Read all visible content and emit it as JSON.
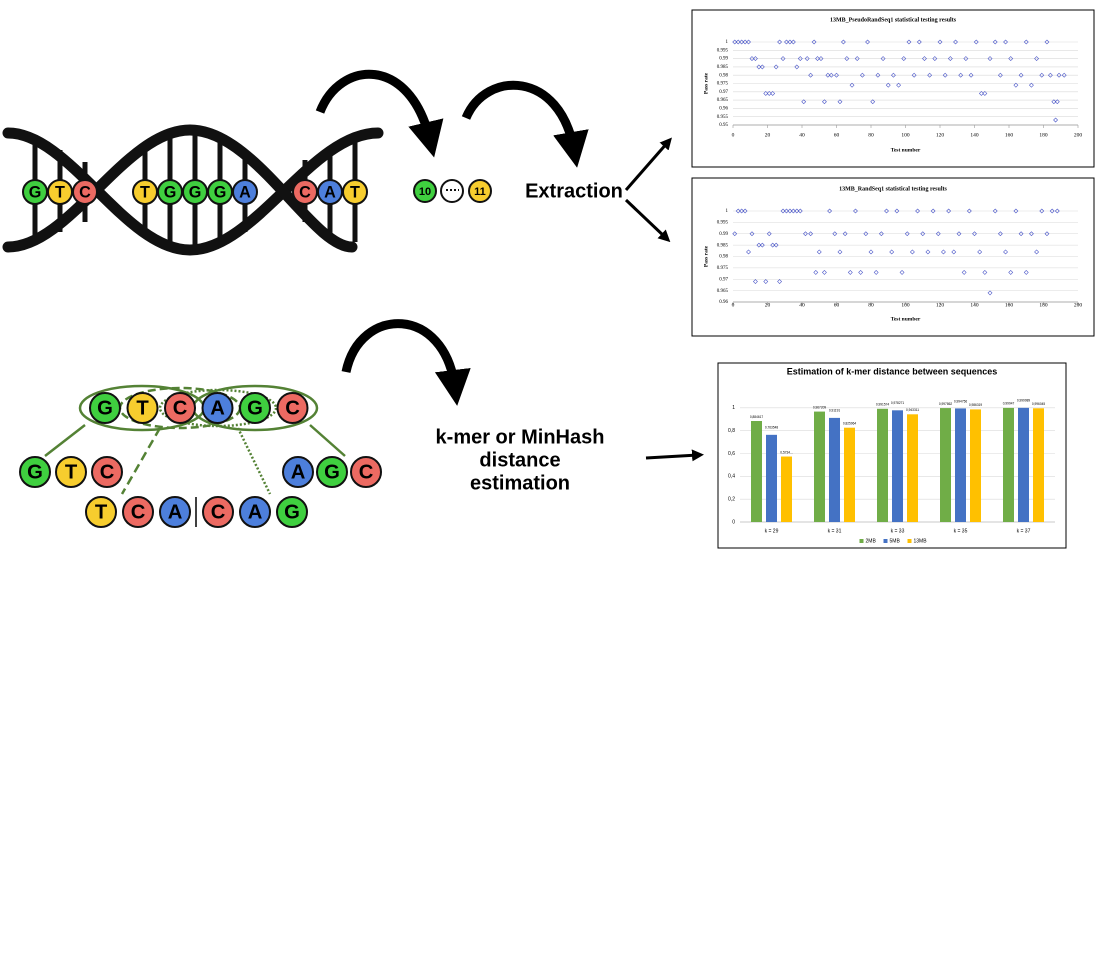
{
  "dna": {
    "bases": [
      "G",
      "T",
      "C",
      "T",
      "G",
      "G",
      "G",
      "A",
      "C",
      "A",
      "T"
    ]
  },
  "counts": [
    "10",
    "11"
  ],
  "labels": {
    "extraction": "Extraction",
    "distance": [
      "k-mer or MinHash",
      "distance",
      "estimation"
    ]
  },
  "kmer": {
    "sequence": [
      "G",
      "T",
      "C",
      "A",
      "G",
      "C"
    ],
    "left": [
      "G",
      "T",
      "C"
    ],
    "right": [
      "A",
      "G",
      "C"
    ],
    "middle_left": [
      "T",
      "C",
      "A"
    ],
    "middle_right": [
      "C",
      "A",
      "G"
    ]
  },
  "chart_data": [
    {
      "type": "scatter",
      "title": "13MB_PseudoRandSeq1 statistical testing results",
      "x_label": "Test number",
      "y_label": "Pass rate",
      "color": "#4a56c8",
      "x": [
        1,
        3,
        5,
        7,
        9,
        11,
        13,
        15,
        17,
        19,
        21,
        23,
        25,
        27,
        29,
        31,
        33,
        35,
        37,
        39,
        41,
        43,
        45,
        47,
        49,
        51,
        53,
        55,
        57,
        60,
        62,
        64,
        66,
        69,
        72,
        75,
        78,
        81,
        84,
        87,
        90,
        93,
        96,
        99,
        102,
        105,
        108,
        111,
        114,
        117,
        120,
        123,
        126,
        129,
        132,
        135,
        138,
        141,
        144,
        146,
        149,
        152,
        155,
        158,
        161,
        164,
        167,
        170,
        173,
        176,
        179,
        182,
        184,
        186,
        187,
        188,
        189,
        192
      ],
      "values": [
        1,
        1,
        1,
        1,
        1,
        0.99,
        0.99,
        0.985,
        0.985,
        0.969,
        0.969,
        0.969,
        0.985,
        1,
        0.99,
        1,
        1,
        1,
        0.985,
        0.99,
        0.964,
        0.99,
        0.98,
        1,
        0.99,
        0.99,
        0.964,
        0.98,
        0.98,
        0.98,
        0.964,
        1,
        0.99,
        0.974,
        0.99,
        0.98,
        1,
        0.964,
        0.98,
        0.99,
        0.974,
        0.98,
        0.974,
        0.99,
        1,
        0.98,
        1,
        0.99,
        0.98,
        0.99,
        1,
        0.98,
        0.99,
        1,
        0.98,
        0.99,
        0.98,
        1,
        0.969,
        0.969,
        0.99,
        1,
        0.98,
        1,
        0.99,
        0.974,
        0.98,
        1,
        0.974,
        0.99,
        0.98,
        1,
        0.98,
        0.964,
        0.953,
        0.964,
        0.98,
        0.98
      ],
      "xlim": [
        0,
        200
      ],
      "xticks": [
        0,
        20,
        40,
        60,
        80,
        100,
        120,
        140,
        160,
        180,
        200
      ],
      "ylim": [
        0.95,
        1
      ],
      "yticks": [
        0.95,
        0.955,
        0.96,
        0.965,
        0.97,
        0.975,
        0.98,
        0.985,
        0.99,
        0.995,
        1
      ],
      "grid": true
    },
    {
      "type": "scatter",
      "title": "13MB_RandSeq1 statistical testing results",
      "x_label": "Test number",
      "y_label": "Pass rate",
      "color": "#4a56c8",
      "x": [
        1,
        3,
        5,
        7,
        9,
        11,
        13,
        15,
        17,
        19,
        21,
        23,
        25,
        27,
        29,
        31,
        33,
        35,
        37,
        39,
        42,
        45,
        48,
        50,
        53,
        56,
        59,
        62,
        65,
        68,
        71,
        74,
        77,
        80,
        83,
        86,
        89,
        92,
        95,
        98,
        101,
        104,
        107,
        110,
        113,
        116,
        119,
        122,
        125,
        128,
        131,
        134,
        137,
        140,
        143,
        146,
        149,
        152,
        155,
        158,
        161,
        164,
        167,
        170,
        173,
        176,
        179,
        182,
        185,
        188
      ],
      "values": [
        0.99,
        1,
        1,
        1,
        0.982,
        0.99,
        0.969,
        0.985,
        0.985,
        0.969,
        0.99,
        0.985,
        0.985,
        0.969,
        1,
        1,
        1,
        1,
        1,
        1,
        0.99,
        0.99,
        0.973,
        0.982,
        0.973,
        1,
        0.99,
        0.982,
        0.99,
        0.973,
        1,
        0.973,
        0.99,
        0.982,
        0.973,
        0.99,
        1,
        0.982,
        1,
        0.973,
        0.99,
        0.982,
        1,
        0.99,
        0.982,
        1,
        0.99,
        0.982,
        1,
        0.982,
        0.99,
        0.973,
        1,
        0.99,
        0.982,
        0.973,
        0.964,
        1,
        0.99,
        0.982,
        0.973,
        1,
        0.99,
        0.973,
        0.99,
        0.982,
        1,
        0.99,
        1,
        1
      ],
      "xlim": [
        0,
        200
      ],
      "xticks": [
        0,
        20,
        40,
        60,
        80,
        100,
        120,
        140,
        160,
        180,
        200
      ],
      "ylim": [
        0.96,
        1
      ],
      "yticks": [
        0.96,
        0.965,
        0.97,
        0.975,
        0.98,
        0.985,
        0.99,
        0.995,
        1
      ],
      "grid": true
    },
    {
      "type": "bar",
      "title": "Estimation of k-mer distance between sequences",
      "categories": [
        "k = 29",
        "k = 31",
        "k = 33",
        "k = 35",
        "k = 37"
      ],
      "series": [
        {
          "name": "2MB",
          "color": "#70ad47",
          "values": [
            0.884617,
            0.967209,
            0.991574,
            0.997862,
            0.99947
          ],
          "value_labels": [
            "0,884617",
            "0,967209",
            "0,991574",
            "0,997862",
            "0,99947"
          ]
        },
        {
          "name": "5MB",
          "color": "#4472c4",
          "values": [
            0.763548,
            0.91191,
            0.978271,
            0.994756,
            0.999989
          ],
          "value_labels": [
            "0,763548",
            "0,91191",
            "0,978271",
            "0,994756",
            "0,999989"
          ]
        },
        {
          "name": "13MB",
          "color": "#ffc000",
          "values": [
            0.5734,
            0.825964,
            0.943311,
            0.986319,
            0.996045
          ],
          "value_labels": [
            "0,5734...",
            "0,825964",
            "0,943311",
            "0,986319",
            "0,996045"
          ]
        }
      ],
      "ylim": [
        0,
        1.2
      ],
      "yticks": [
        0,
        {
          "value": 0.2,
          "label": "0,2"
        },
        {
          "value": 0.4,
          "label": "0,4"
        },
        {
          "value": 0.6,
          "label": "0,6"
        },
        {
          "value": 0.8,
          "label": "0,8"
        },
        1
      ],
      "grid": true,
      "legend": "bottom"
    }
  ]
}
